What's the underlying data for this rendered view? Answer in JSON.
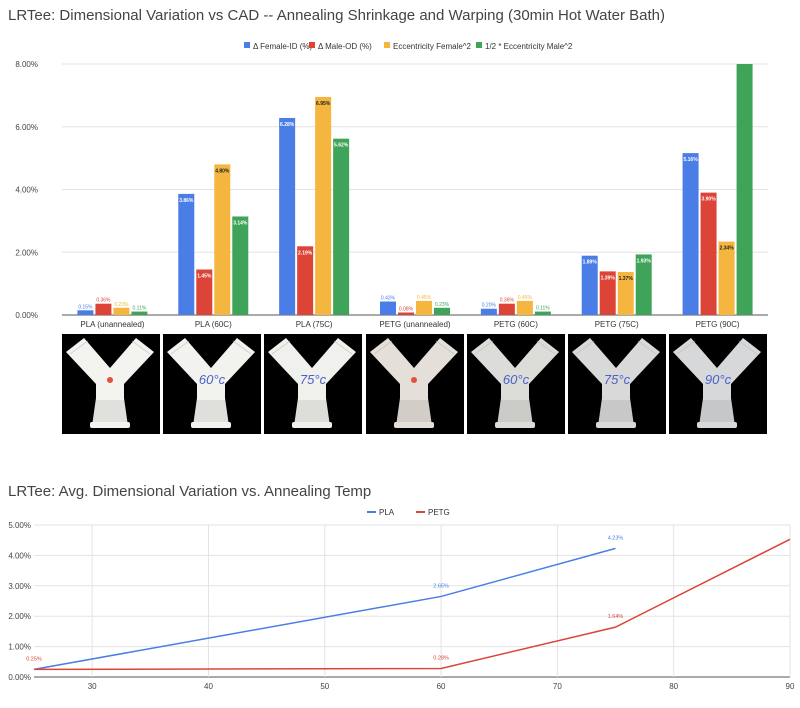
{
  "chart_data": [
    {
      "type": "bar",
      "title": "LRTee: Dimensional Variation vs CAD -- Annealing Shrinkage and Warping (30min Hot Water Bath)",
      "categories": [
        "PLA (unannealed)",
        "PLA (60C)",
        "PLA (75C)",
        "PETG (unannealed)",
        "PETG (60C)",
        "PETG (75C)",
        "PETG (90C)"
      ],
      "series": [
        {
          "name": "Δ Female-ID (%)",
          "color": "#4a7ee6",
          "values": [
            0.15,
            3.86,
            6.28,
            0.43,
            0.2,
            1.89,
            5.16
          ],
          "labels": [
            "0.15%",
            "3.86%",
            "6.28%",
            "0.43%",
            "0.20%",
            "1.89%",
            "5.16%"
          ]
        },
        {
          "name": "Δ Male-OD (%)",
          "color": "#dc4437",
          "values": [
            0.36,
            1.45,
            2.19,
            0.08,
            0.36,
            1.39,
            3.9
          ],
          "labels": [
            "0.36%",
            "1.45%",
            "2.19%",
            "0.08%",
            "0.36%",
            "1.39%",
            "3.90%"
          ]
        },
        {
          "name": "Eccentricity Female^2",
          "color": "#f4b63e",
          "values": [
            0.23,
            4.8,
            6.95,
            0.45,
            0.45,
            1.37,
            2.34
          ],
          "labels": [
            "0.23%",
            "4.80%",
            "6.95%",
            "0.45%",
            "0.45%",
            "1.37%",
            "2.34%"
          ]
        },
        {
          "name": "1/2 * Eccentricity Male^2",
          "color": "#3fa45a",
          "values": [
            0.11,
            3.14,
            5.62,
            0.23,
            0.11,
            1.93,
            8.0
          ],
          "labels": [
            "0.11%",
            "3.14%",
            "5.62%",
            "0.23%",
            "0.11%",
            "1.93%",
            ""
          ]
        }
      ],
      "ylim": [
        0,
        8
      ],
      "yticks": [
        "0.00%",
        "2.00%",
        "4.00%",
        "6.00%",
        "8.00%"
      ],
      "legend": "top",
      "grid": true
    },
    {
      "type": "line",
      "title": "LRTee: Avg. Dimensional Variation vs. Annealing Temp",
      "series": [
        {
          "name": "PLA",
          "color": "#4a7ee6",
          "x": [
            25,
            60,
            75
          ],
          "y": [
            0.25,
            2.65,
            4.23
          ],
          "labels": [
            "",
            "2.65%",
            "4.23%"
          ]
        },
        {
          "name": "PETG",
          "color": "#dc4437",
          "x": [
            25,
            60,
            75,
            90
          ],
          "y": [
            0.25,
            0.28,
            1.64,
            4.53
          ],
          "labels": [
            "0.25%",
            "0.28%",
            "1.64%",
            ""
          ]
        }
      ],
      "xlim": [
        25,
        90
      ],
      "xticks": [
        "30",
        "40",
        "50",
        "60",
        "70",
        "80",
        "90"
      ],
      "ylim": [
        0,
        5
      ],
      "yticks": [
        "0.00%",
        "1.00%",
        "2.00%",
        "3.00%",
        "4.00%",
        "5.00%"
      ],
      "legend": "top",
      "grid": true
    }
  ],
  "photos": {
    "items": [
      {
        "name": "photo-pla-unannealed",
        "annotation": "",
        "tint": "#f3f3f0",
        "dot": true
      },
      {
        "name": "photo-pla-60c",
        "annotation": "60°c",
        "tint": "#f2f2ef",
        "dot": false
      },
      {
        "name": "photo-pla-75c",
        "annotation": "75°c",
        "tint": "#f0f0ec",
        "dot": false
      },
      {
        "name": "photo-petg-unannealed",
        "annotation": "",
        "tint": "#e4dfd8",
        "dot": true
      },
      {
        "name": "photo-petg-60c",
        "annotation": "60°c",
        "tint": "#dcdcd8",
        "dot": false
      },
      {
        "name": "photo-petg-75c",
        "annotation": "75°c",
        "tint": "#d8d9d8",
        "dot": false
      },
      {
        "name": "photo-petg-90c",
        "annotation": "90°c",
        "tint": "#d6d8da",
        "dot": false
      }
    ],
    "ink_color": "#4a62c8"
  }
}
